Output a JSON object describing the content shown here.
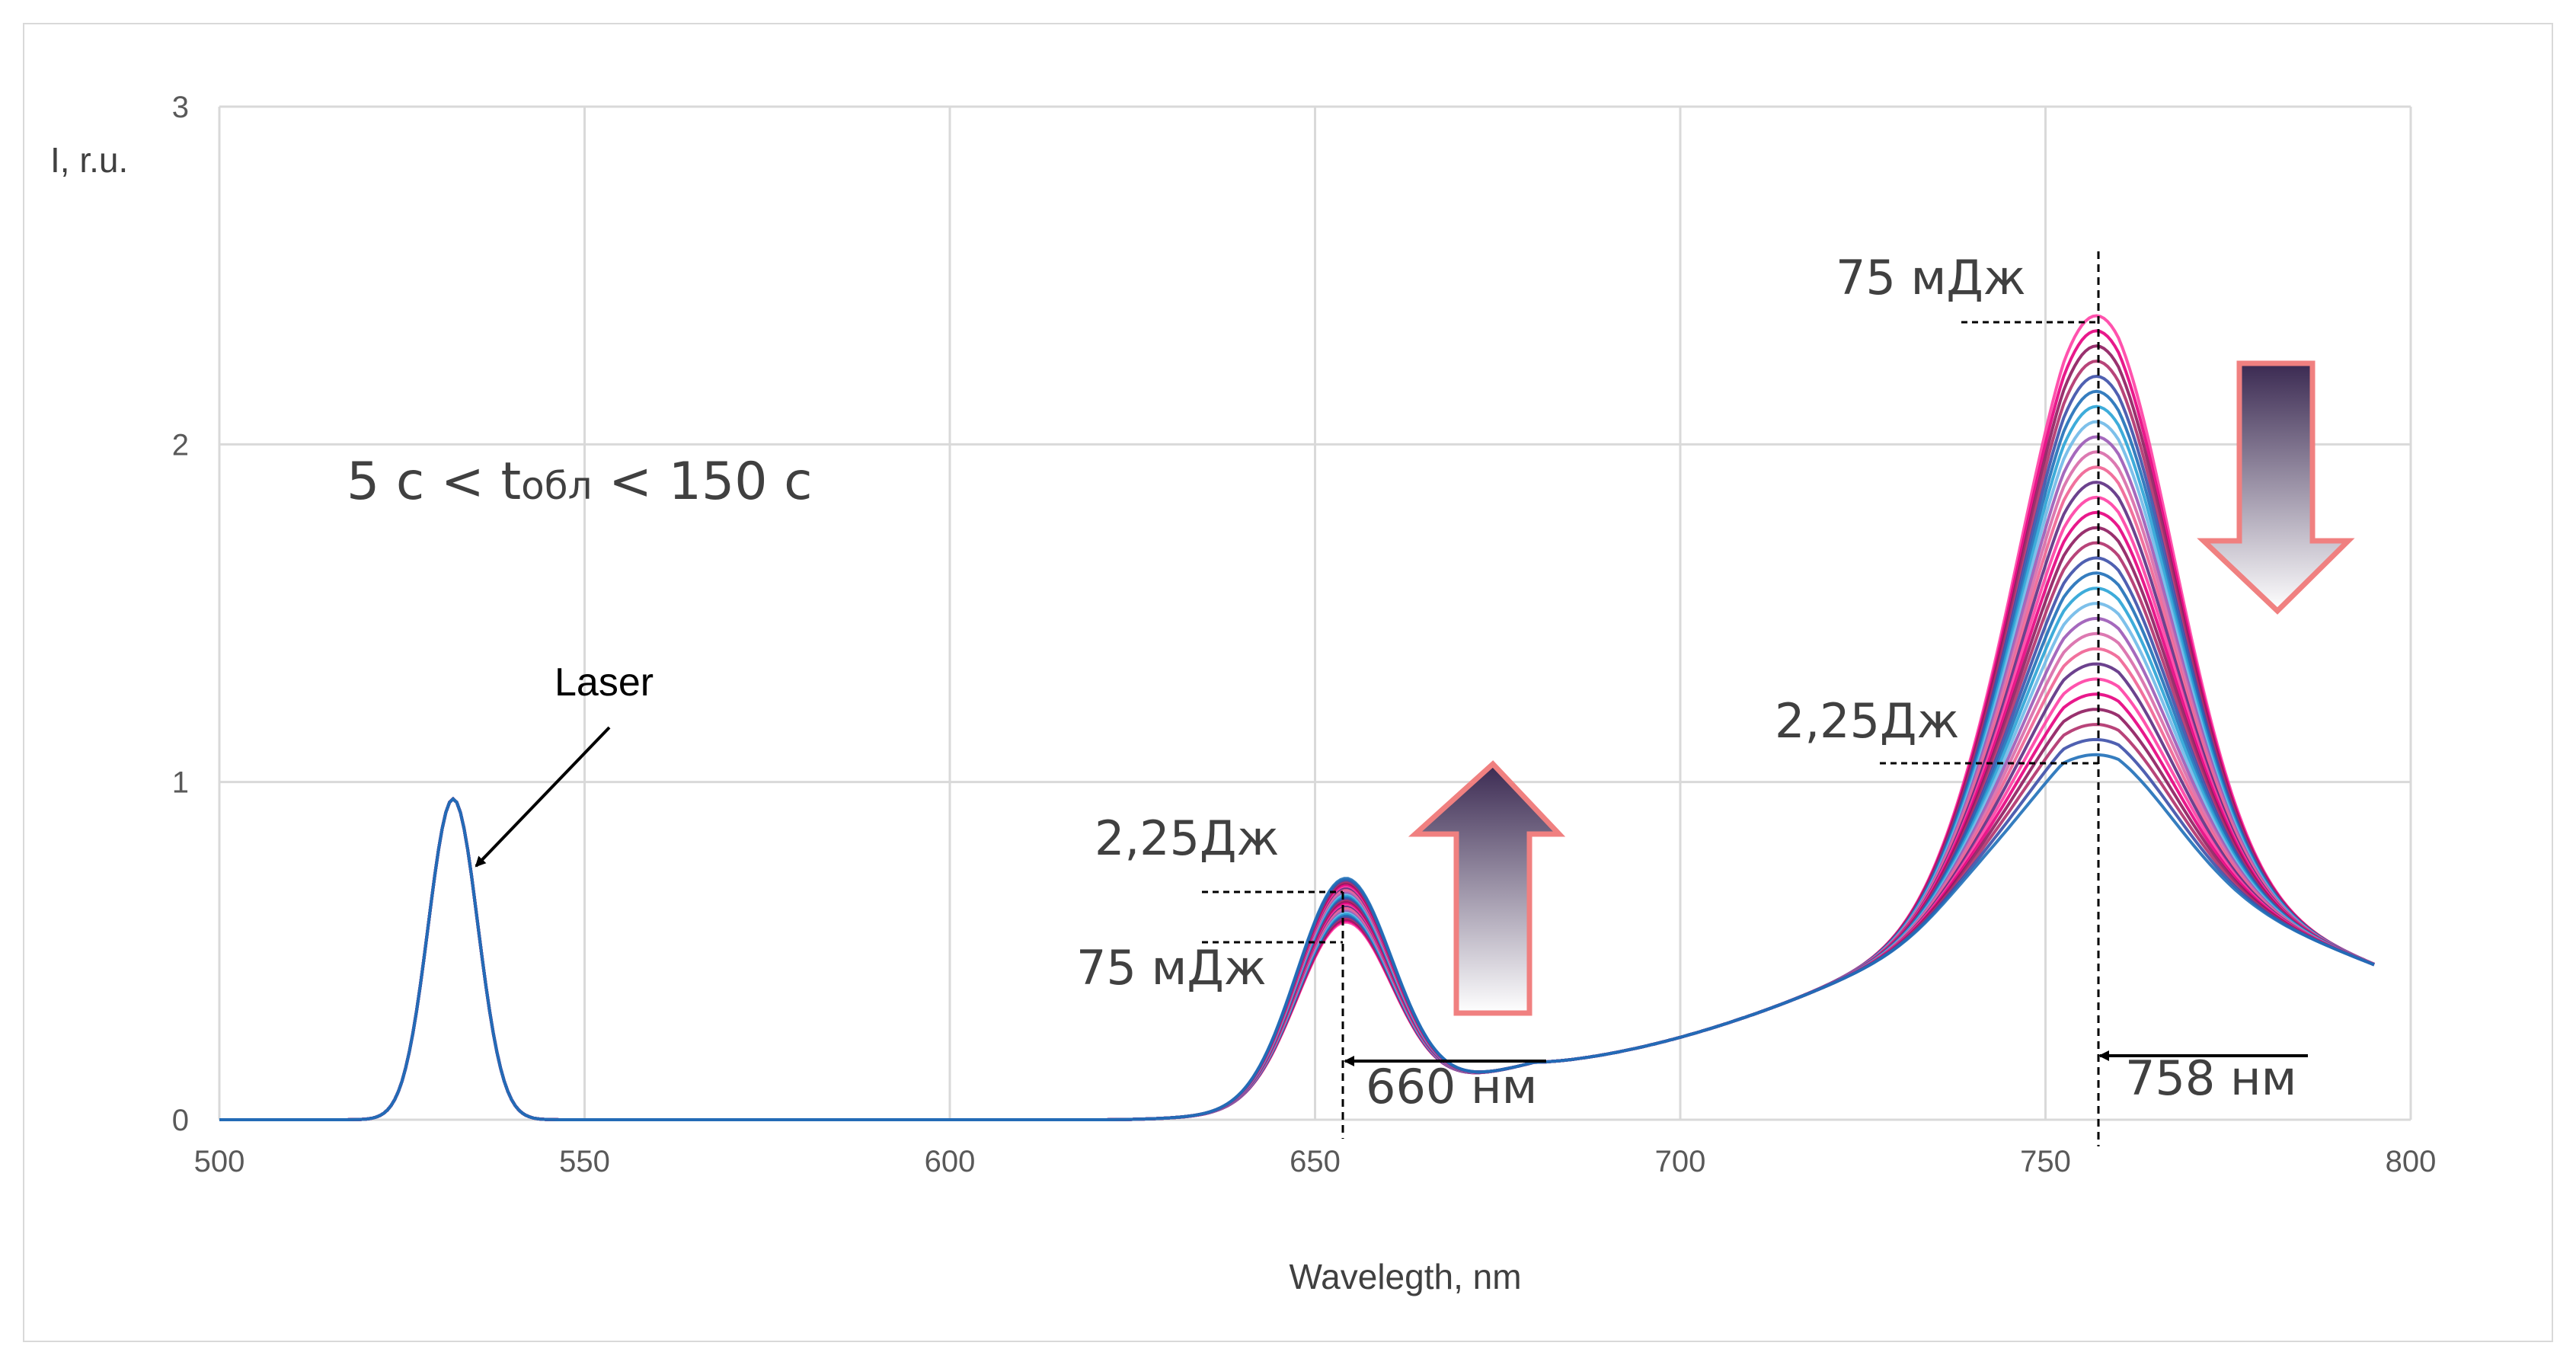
{
  "chart_data": {
    "type": "line",
    "xlabel": "Wavelegth, nm",
    "ylabel": "I, r.u.",
    "xlim": [
      500,
      800
    ],
    "ylim": [
      0,
      3
    ],
    "x_ticks": [
      "500",
      "550",
      "600",
      "650",
      "700",
      "750",
      "800"
    ],
    "y_ticks": [
      "0",
      "1",
      "2",
      "3"
    ],
    "grid": true,
    "series_count": 30,
    "peak_start_at_758": 2.35,
    "peak_end_at_758": 1.05,
    "peak_start_at_655": 0.53,
    "peak_end_at_655": 0.66,
    "laser_peak": {
      "x": 532,
      "y": 0.95
    },
    "annotations": {
      "laser": "Laser",
      "time_prefix": "5 с < t",
      "time_sub": "обл",
      "time_suffix": " < 150 с",
      "top_right_energy": "75 мДж",
      "mid_right_energy": "2,25Дж",
      "left_top_energy": "2,25Дж",
      "left_low_energy": "75 мДж",
      "wl_left": "660 нм",
      "wl_right": "758 нм"
    },
    "arrows": {
      "left": "up",
      "right": "down"
    },
    "colors": {
      "palette": [
        "#ff3fa4",
        "#e6007e",
        "#8e1b5e",
        "#b0306a",
        "#3c4fa8",
        "#1f6fb8",
        "#29a3d6",
        "#6fb9e8",
        "#9b59b6",
        "#d86aa8",
        "#f06292",
        "#5c2d82"
      ],
      "arrow_fill_dark": "#3b2a52",
      "arrow_fill_light": "#ffffff",
      "arrow_stroke": "#f08080",
      "grid": "#d9d9d9"
    }
  }
}
